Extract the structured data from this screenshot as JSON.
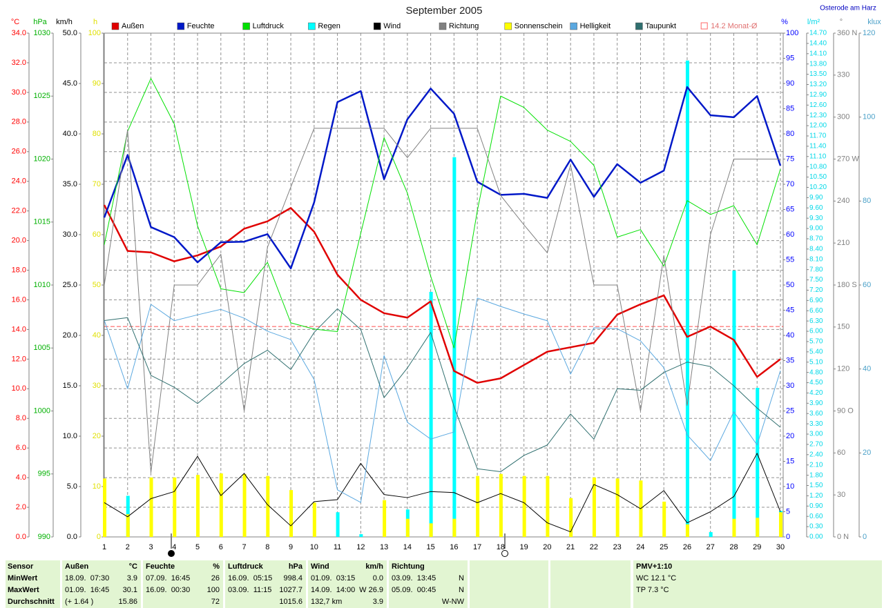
{
  "chart_data": {
    "type": "line",
    "title": "September 2005",
    "location": "Osterode am Harz",
    "grid": true,
    "x": [
      1,
      2,
      3,
      4,
      5,
      6,
      7,
      8,
      9,
      10,
      11,
      12,
      13,
      14,
      15,
      16,
      17,
      18,
      19,
      20,
      21,
      22,
      23,
      24,
      25,
      26,
      27,
      28,
      29,
      30
    ],
    "xlim": [
      1,
      30
    ],
    "xticks": [
      1,
      2,
      3,
      4,
      5,
      6,
      7,
      8,
      9,
      10,
      11,
      12,
      13,
      14,
      15,
      16,
      17,
      18,
      19,
      20,
      21,
      22,
      23,
      24,
      25,
      26,
      27,
      28,
      29,
      30
    ],
    "axes": [
      {
        "unit": "°C",
        "color": "#ff0000",
        "lim": [
          0,
          34
        ],
        "ticks": [
          {
            "value": 0,
            "label": "0.0"
          },
          {
            "value": 2,
            "label": "2.0"
          },
          {
            "value": 4,
            "label": "4.0"
          },
          {
            "value": 6,
            "label": "6.0"
          },
          {
            "value": 8,
            "label": "8.0"
          },
          {
            "value": 10,
            "label": "10.0"
          },
          {
            "value": 12,
            "label": "12.0"
          },
          {
            "value": 14,
            "label": "14.0"
          },
          {
            "value": 16,
            "label": "16.0"
          },
          {
            "value": 18,
            "label": "18.0"
          },
          {
            "value": 20,
            "label": "20.0"
          },
          {
            "value": 22,
            "label": "22.0"
          },
          {
            "value": 24,
            "label": "24.0"
          },
          {
            "value": 26,
            "label": "26.0"
          },
          {
            "value": 28,
            "label": "28.0"
          },
          {
            "value": 30,
            "label": "30.0"
          },
          {
            "value": 32,
            "label": "32.0"
          },
          {
            "value": 34,
            "label": "34.0"
          }
        ]
      },
      {
        "unit": "hPa",
        "color": "#00b000",
        "lim": [
          990,
          1030
        ],
        "ticks": [
          990,
          995,
          1000,
          1005,
          1010,
          1015,
          1020,
          1025,
          1030
        ]
      },
      {
        "unit": "km/h",
        "color": "#000000",
        "lim": [
          0,
          50
        ],
        "ticks": [
          {
            "value": 0,
            "label": "0.0"
          },
          {
            "value": 5,
            "label": "5.0"
          },
          {
            "value": 10,
            "label": "10.0"
          },
          {
            "value": 15,
            "label": "15.0"
          },
          {
            "value": 20,
            "label": "20.0"
          },
          {
            "value": 25,
            "label": "25.0"
          },
          {
            "value": 30,
            "label": "30.0"
          },
          {
            "value": 35,
            "label": "35.0"
          },
          {
            "value": 40,
            "label": "40.0"
          },
          {
            "value": 45,
            "label": "45.0"
          },
          {
            "value": 50,
            "label": "50.0"
          }
        ]
      },
      {
        "unit": "h",
        "color": "#e0e000",
        "lim": [
          0,
          100
        ],
        "ticks": [
          0,
          10,
          20,
          30,
          40,
          50,
          60,
          70,
          80,
          90,
          100
        ]
      },
      {
        "unit": "%",
        "color": "#0000ff",
        "lim": [
          0,
          100
        ],
        "ticks": [
          0,
          5,
          10,
          15,
          20,
          25,
          30,
          35,
          40,
          45,
          50,
          55,
          60,
          65,
          70,
          75,
          80,
          85,
          90,
          95,
          100
        ]
      },
      {
        "unit": "l/m²",
        "color": "#00d8e8",
        "lim": [
          0,
          14.7
        ],
        "ticks": [
          {
            "value": 0,
            "label": "0.00"
          },
          {
            "value": 0.3,
            "label": "0.30"
          },
          {
            "value": 0.6,
            "label": "0.60"
          },
          {
            "value": 0.9,
            "label": "0.90"
          },
          {
            "value": 1.2,
            "label": "1.20"
          },
          {
            "value": 1.5,
            "label": "1.50"
          },
          {
            "value": 1.8,
            "label": "1.80"
          },
          {
            "value": 2.1,
            "label": "2.10"
          },
          {
            "value": 2.4,
            "label": "2.40"
          },
          {
            "value": 2.7,
            "label": "2.70"
          },
          {
            "value": 3.0,
            "label": "3.00"
          },
          {
            "value": 3.3,
            "label": "3.30"
          },
          {
            "value": 3.6,
            "label": "3.60"
          },
          {
            "value": 3.9,
            "label": "3.90"
          },
          {
            "value": 4.2,
            "label": "4.20"
          },
          {
            "value": 4.5,
            "label": "4.50"
          },
          {
            "value": 4.8,
            "label": "4.80"
          },
          {
            "value": 5.1,
            "label": "5.10"
          },
          {
            "value": 5.4,
            "label": "5.40"
          },
          {
            "value": 5.7,
            "label": "5.70"
          },
          {
            "value": 6.0,
            "label": "6.00"
          },
          {
            "value": 6.3,
            "label": "6.30"
          },
          {
            "value": 6.6,
            "label": "6.60"
          },
          {
            "value": 6.9,
            "label": "6.90"
          },
          {
            "value": 7.2,
            "label": "7.20"
          },
          {
            "value": 7.5,
            "label": "7.50"
          },
          {
            "value": 7.8,
            "label": "7.80"
          },
          {
            "value": 8.1,
            "label": "8.10"
          },
          {
            "value": 8.4,
            "label": "8.40"
          },
          {
            "value": 8.7,
            "label": "8.70"
          },
          {
            "value": 9.0,
            "label": "9.00"
          },
          {
            "value": 9.3,
            "label": "9.30"
          },
          {
            "value": 9.6,
            "label": "9.60"
          },
          {
            "value": 9.9,
            "label": "9.90"
          },
          {
            "value": 10.2,
            "label": "10.20"
          },
          {
            "value": 10.5,
            "label": "10.50"
          },
          {
            "value": 10.8,
            "label": "10.80"
          },
          {
            "value": 11.1,
            "label": "11.10"
          },
          {
            "value": 11.4,
            "label": "11.40"
          },
          {
            "value": 11.7,
            "label": "11.70"
          },
          {
            "value": 12.0,
            "label": "12.00"
          },
          {
            "value": 12.3,
            "label": "12.30"
          },
          {
            "value": 12.6,
            "label": "12.60"
          },
          {
            "value": 12.9,
            "label": "12.90"
          },
          {
            "value": 13.2,
            "label": "13.20"
          },
          {
            "value": 13.5,
            "label": "13.50"
          },
          {
            "value": 13.8,
            "label": "13.80"
          },
          {
            "value": 14.1,
            "label": "14.10"
          },
          {
            "value": 14.4,
            "label": "14.40"
          },
          {
            "value": 14.7,
            "label": "14.70"
          }
        ]
      },
      {
        "unit": "°",
        "color": "#808080",
        "lim": [
          0,
          360
        ],
        "ticks": [
          {
            "value": 0,
            "label": "0 N"
          },
          30,
          60,
          {
            "value": 90,
            "label": "90 O"
          },
          120,
          150,
          {
            "value": 180,
            "label": "180 S"
          },
          210,
          240,
          {
            "value": 270,
            "label": "270 W"
          },
          300,
          330,
          {
            "value": 360,
            "label": "360 N"
          }
        ]
      },
      {
        "unit": "klux",
        "color": "#4aa0c8",
        "lim": [
          0,
          120
        ],
        "ticks": [
          0,
          20,
          40,
          60,
          80,
          100,
          120
        ]
      }
    ],
    "avg_line": {
      "value": 14.2,
      "label": "14.2 Monat-Ø",
      "color": "#ff0000",
      "axis": 0
    },
    "series": [
      {
        "name": "Außen",
        "color": "#e00000",
        "type": "line",
        "axis": 0,
        "width": 2.5,
        "values": [
          22.4,
          19.3,
          19.2,
          18.6,
          19.0,
          19.6,
          20.8,
          21.3,
          22.2,
          20.6,
          17.7,
          16.0,
          15.1,
          14.8,
          15.9,
          11.2,
          10.4,
          10.7,
          11.6,
          12.5,
          12.8,
          13.1,
          15.0,
          15.7,
          16.3,
          13.5,
          14.2,
          13.3,
          10.8,
          12.0
        ]
      },
      {
        "name": "Feuchte",
        "color": "#0018c8",
        "type": "line",
        "axis": 4,
        "width": 2.5,
        "values": [
          63.4,
          75.8,
          61.5,
          59.5,
          54.5,
          58.5,
          58.6,
          60.1,
          53.3,
          66.4,
          86.3,
          88.5,
          71.0,
          82.9,
          89.0,
          84.0,
          70.5,
          67.9,
          68.1,
          67.3,
          74.9,
          67.5,
          74.0,
          70.3,
          72.7,
          89.3,
          83.7,
          83.3,
          87.5,
          73.7
        ]
      },
      {
        "name": "Luftdruck",
        "color": "#00e000",
        "type": "line",
        "axis": 1,
        "width": 1,
        "values": [
          1013.2,
          1022.2,
          1026.4,
          1022.8,
          1014.7,
          1009.7,
          1009.4,
          1011.8,
          1007.0,
          1006.5,
          1006.3,
          1014.1,
          1021.7,
          1017.3,
          1010.7,
          1005.0,
          1015.9,
          1025.0,
          1024.1,
          1022.3,
          1021.4,
          1019.5,
          1013.8,
          1014.4,
          1011.5,
          1016.7,
          1015.6,
          1016.3,
          1013.2,
          1019.2
        ]
      },
      {
        "name": "Regen",
        "color": "#00ffff",
        "type": "bar",
        "axis": 5,
        "values": [
          0,
          1.2,
          0,
          0,
          0,
          0,
          0,
          0,
          0,
          0,
          0.72,
          0.08,
          0,
          0.8,
          7.15,
          11.08,
          0,
          0,
          0,
          0,
          0,
          0,
          0,
          0,
          0,
          13.9,
          0.14,
          7.77,
          4.35,
          0.76
        ]
      },
      {
        "name": "Wind",
        "color": "#000000",
        "type": "line",
        "axis": 2,
        "width": 1,
        "values": [
          3.4,
          2.0,
          3.8,
          4.5,
          8.0,
          4.1,
          6.3,
          3.2,
          1.1,
          3.5,
          3.7,
          7.3,
          4.2,
          3.9,
          4.5,
          4.4,
          3.4,
          4.3,
          3.4,
          1.4,
          0.5,
          5.2,
          4.2,
          2.8,
          4.6,
          1.4,
          2.5,
          4.0,
          8.3,
          2.5
        ]
      },
      {
        "name": "Richtung",
        "color": "#808080",
        "type": "line",
        "axis": 6,
        "width": 1,
        "values": [
          180,
          291,
          46,
          180,
          180,
          202,
          90,
          207,
          250,
          292,
          292,
          292,
          292,
          271,
          292,
          292,
          292,
          244,
          223,
          203,
          266,
          180,
          180,
          90,
          201,
          94,
          216,
          270,
          270,
          270
        ]
      },
      {
        "name": "Sonnenschein",
        "color": "#ffff00",
        "type": "bar",
        "axis": 3,
        "values": [
          11.6,
          4.5,
          11.8,
          11.8,
          12.3,
          12.6,
          12.5,
          12.1,
          9.3,
          6.8,
          0,
          0,
          7.3,
          3.6,
          2.7,
          3.6,
          12.1,
          12.5,
          12.1,
          12.1,
          7.7,
          11.8,
          11.6,
          11.2,
          7.0,
          2.5,
          0,
          3.6,
          3.8,
          4.9
        ]
      },
      {
        "name": "Helligkeit",
        "color": "#5aa8e0",
        "type": "line",
        "axis": 7,
        "width": 1,
        "values": [
          51.6,
          35.3,
          55.4,
          51.5,
          52.9,
          54.2,
          52.1,
          49.0,
          47.0,
          37.5,
          11.2,
          8.2,
          43.2,
          27.3,
          23.3,
          25.0,
          56.9,
          54.9,
          53.1,
          51.5,
          38.8,
          49.8,
          49.6,
          46.7,
          40.3,
          24.3,
          18.2,
          29.8,
          21.9,
          39.6
        ]
      },
      {
        "name": "Taupunkt",
        "color": "#2f6f6f",
        "type": "line",
        "axis": 0,
        "width": 1,
        "values": [
          14.6,
          14.8,
          10.9,
          10.1,
          9.0,
          10.3,
          11.7,
          12.6,
          11.3,
          13.8,
          15.4,
          14.0,
          9.4,
          11.4,
          13.8,
          8.8,
          4.6,
          4.4,
          5.5,
          6.2,
          8.3,
          6.6,
          10.0,
          9.9,
          11.1,
          11.8,
          11.5,
          10.2,
          8.7,
          7.4
        ]
      }
    ]
  },
  "stats_table": {
    "row_labels": [
      "Sensor",
      "MinWert",
      "MaxWert",
      "Durchschnitt"
    ],
    "columns": [
      {
        "name": "Außen",
        "unit": "°C",
        "cells": [
          [
            "18.09.  07:30",
            "3.9"
          ],
          [
            "01.09.  16:45",
            "30.1"
          ],
          [
            "(+ 1.64 )",
            "15.86"
          ]
        ]
      },
      {
        "name": "Feuchte",
        "unit": "%",
        "cells": [
          [
            "07.09.  16:45",
            "26"
          ],
          [
            "16.09.  00:30",
            "100"
          ],
          [
            null,
            "72"
          ]
        ]
      },
      {
        "name": "Luftdruck",
        "unit": "hPa",
        "cells": [
          [
            "16.09.  05:15",
            "998.4"
          ],
          [
            "03.09.  11:15",
            "1027.7"
          ],
          [
            null,
            "1015.6"
          ]
        ]
      },
      {
        "name": "Wind",
        "unit": "km/h",
        "cells": [
          [
            "01.09.  03:15",
            "0.0"
          ],
          [
            "14.09.  14:00",
            "W 26.9"
          ],
          [
            "132,7 km",
            "3.9"
          ]
        ]
      },
      {
        "name": "Richtung",
        "unit": null,
        "cells": [
          [
            "03.09.  13:45",
            "N"
          ],
          [
            "05.09.  00:45",
            "N"
          ],
          [
            null,
            "W-NW"
          ]
        ]
      }
    ],
    "pmv": {
      "title": "PMV+1:10",
      "lines": [
        "WC 12.1 °C",
        "TP 7.3 °C"
      ]
    }
  }
}
